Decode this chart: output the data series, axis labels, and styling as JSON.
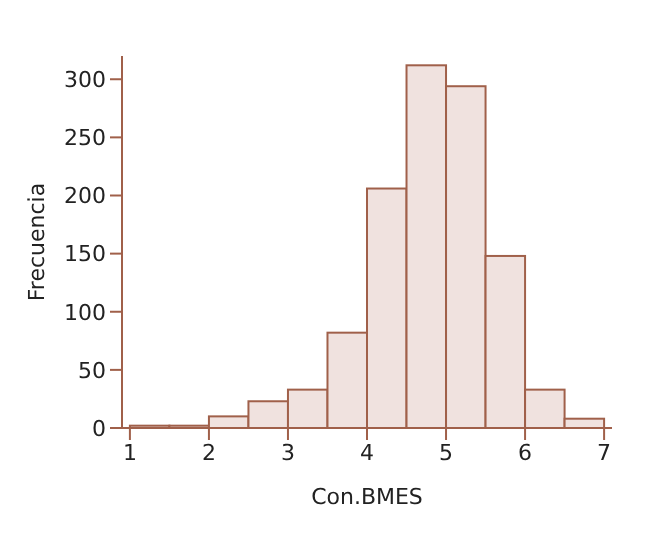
{
  "chart_data": {
    "type": "histogram",
    "xlabel": "Con.BMES",
    "ylabel": "Frecuencia",
    "bins": [
      1,
      1.5,
      2,
      2.5,
      3,
      3.5,
      4,
      4.5,
      5,
      5.5,
      6,
      6.5,
      7
    ],
    "values": [
      2,
      2,
      10,
      23,
      33,
      82,
      206,
      312,
      294,
      148,
      33,
      8
    ],
    "color": "#f0e2df",
    "xlim": [
      0.9,
      7.1
    ],
    "xticks": [
      1,
      2,
      3,
      4,
      5,
      6,
      7
    ],
    "ylim": [
      0,
      320
    ],
    "yticks": [
      0,
      50,
      100,
      150,
      200,
      250,
      300
    ],
    "grid": false
  }
}
